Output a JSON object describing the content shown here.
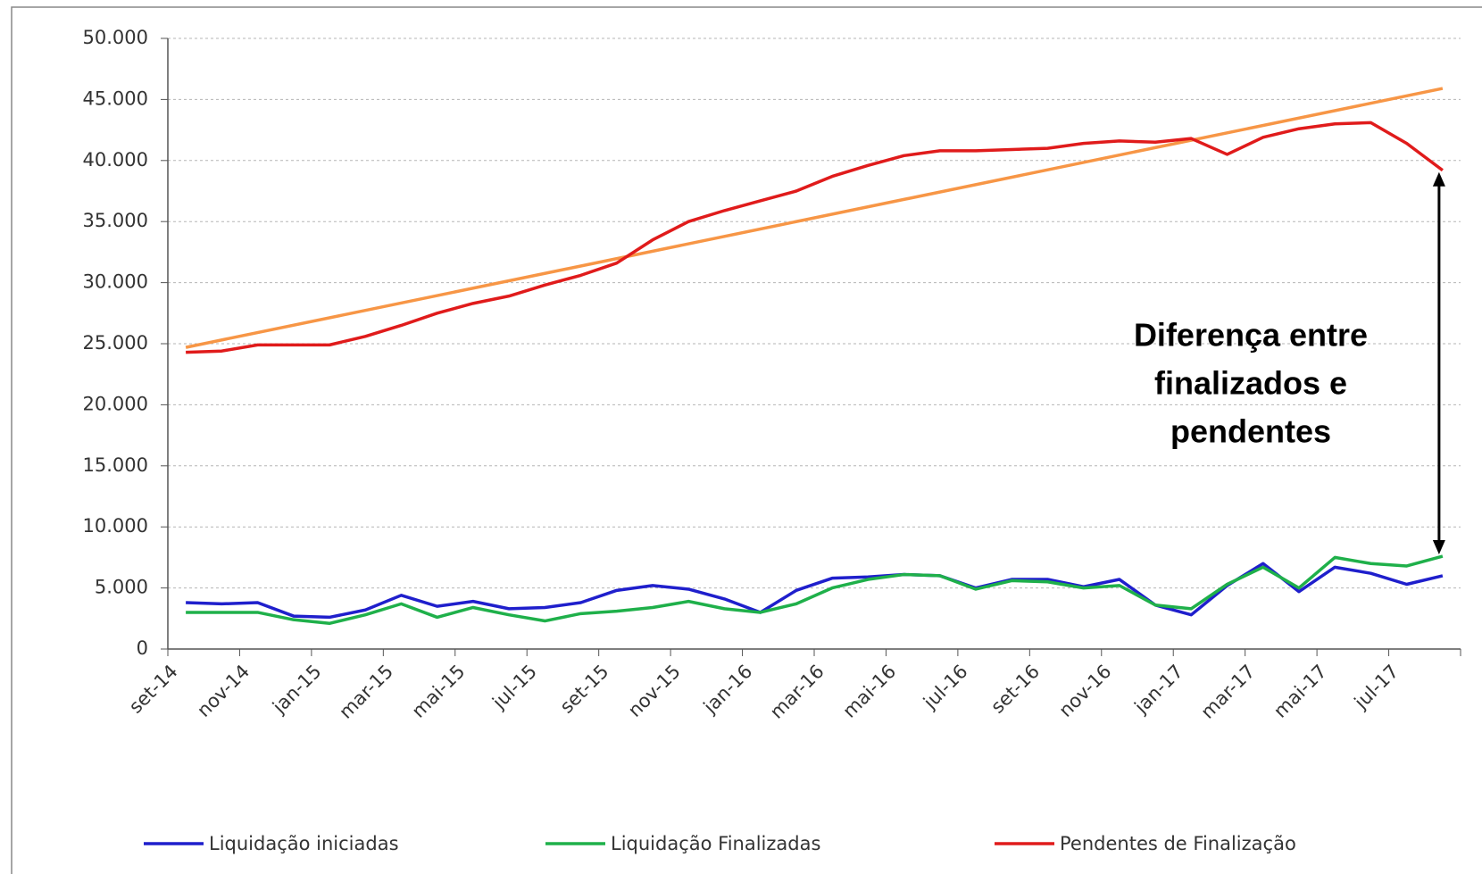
{
  "chart_data": {
    "type": "line",
    "categories": [
      "set-14",
      null,
      "nov-14",
      null,
      "jan-15",
      null,
      "mar-15",
      null,
      "mai-15",
      null,
      "jul-15",
      null,
      "set-15",
      null,
      "nov-15",
      null,
      "jan-16",
      null,
      "mar-16",
      null,
      "mai-16",
      null,
      "jul-16",
      null,
      "set-16",
      null,
      "nov-16",
      null,
      "jan-17",
      null,
      "mar-17",
      null,
      "mai-17",
      null,
      "jul-17",
      null
    ],
    "series": [
      {
        "name": "Liquidação iniciadas",
        "color": "#1f1fcc",
        "values": [
          3800,
          3700,
          3800,
          2700,
          2600,
          3200,
          4400,
          3500,
          3900,
          3300,
          3400,
          3800,
          4800,
          5200,
          4900,
          4100,
          3000,
          4800,
          5800,
          5900,
          6100,
          6000,
          5000,
          5700,
          5700,
          5100,
          5700,
          3600,
          2800,
          5200,
          7000,
          4700,
          6700,
          6200,
          5300,
          6000
        ]
      },
      {
        "name": "Liquidação Finalizadas",
        "color": "#1fb04a",
        "values": [
          3000,
          3000,
          3000,
          2400,
          2100,
          2800,
          3700,
          2600,
          3400,
          2800,
          2300,
          2900,
          3100,
          3400,
          3900,
          3300,
          3000,
          3700,
          5000,
          5700,
          6100,
          6000,
          4900,
          5600,
          5500,
          5000,
          5200,
          3600,
          3300,
          5300,
          6700,
          5000,
          7500,
          7000,
          6800,
          7600
        ]
      },
      {
        "name": "Pendentes de Finalização",
        "color": "#e01b1b",
        "values": [
          24300,
          24400,
          24900,
          24900,
          24900,
          25600,
          26500,
          27500,
          28300,
          28900,
          29800,
          30600,
          31600,
          33500,
          35000,
          35900,
          36700,
          37500,
          38700,
          39600,
          40400,
          40800,
          40800,
          40900,
          41000,
          41400,
          41600,
          41500,
          41800,
          40500,
          41900,
          42600,
          43000,
          43100,
          41400,
          39200
        ]
      }
    ],
    "trend": {
      "color": "#f79646",
      "values": [
        24700,
        45900
      ]
    },
    "annotation": [
      "Diferença entre",
      "finalizados e",
      "pendentes"
    ],
    "ylim": [
      0,
      50000
    ],
    "yticks": [
      0,
      {
        "value": 5000,
        "label": "5.000"
      },
      {
        "value": 10000,
        "label": "10.000"
      },
      {
        "value": 15000,
        "label": "15.000"
      },
      {
        "value": 20000,
        "label": "20.000"
      },
      {
        "value": 25000,
        "label": "25.000"
      },
      {
        "value": 30000,
        "label": "30.000"
      },
      {
        "value": 35000,
        "label": "35.000"
      },
      {
        "value": 40000,
        "label": "40.000"
      },
      {
        "value": 45000,
        "label": "45.000"
      },
      {
        "value": 50000,
        "label": "50.000"
      }
    ],
    "grid": true,
    "legend": "bottom"
  }
}
